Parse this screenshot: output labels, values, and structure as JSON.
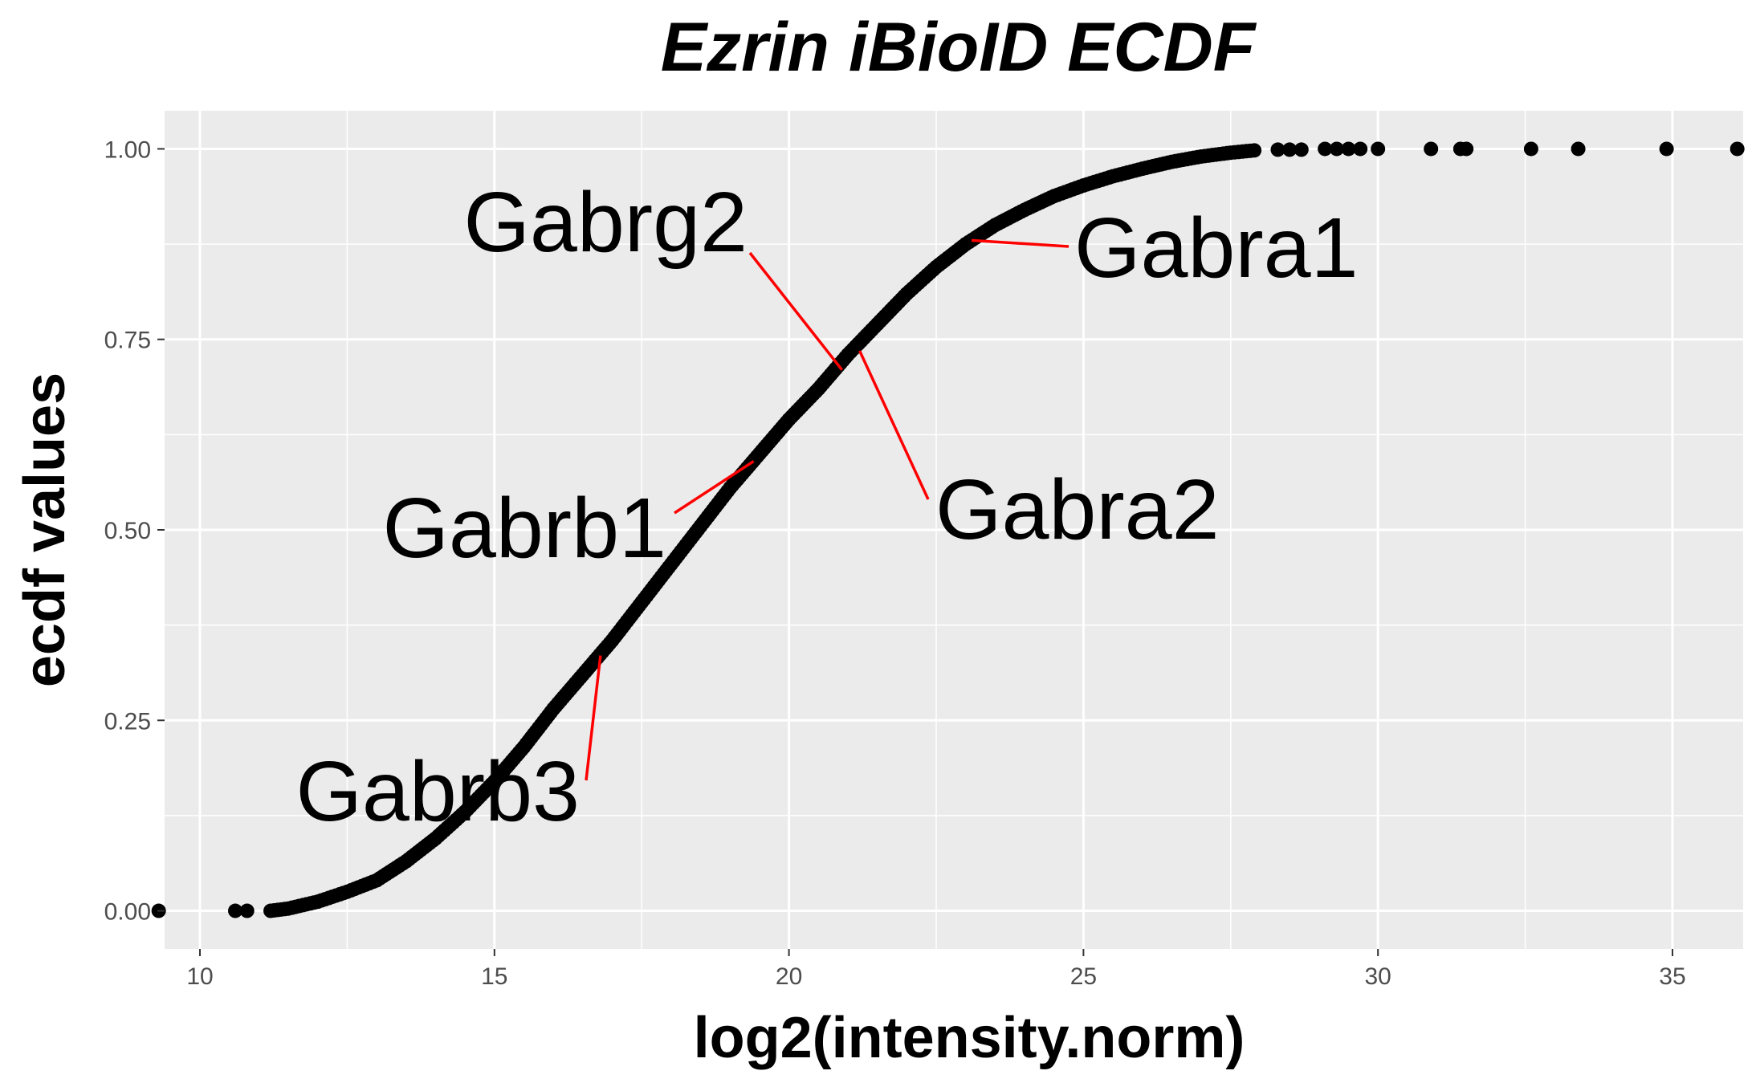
{
  "chart_data": {
    "type": "scatter",
    "title": "Ezrin iBioID ECDF",
    "xlabel": "log2(intensity.norm)",
    "ylabel": "ecdf values",
    "xlim": [
      9.4,
      36.2
    ],
    "ylim": [
      -0.05,
      1.05
    ],
    "x_ticks": [
      10,
      15,
      20,
      25,
      30,
      35
    ],
    "x_tick_labels": [
      "10",
      "15",
      "20",
      "25",
      "30",
      "35"
    ],
    "y_ticks": [
      0.0,
      0.25,
      0.5,
      0.75,
      1.0
    ],
    "y_tick_labels": [
      "0.00",
      "0.25",
      "0.50",
      "0.75",
      "1.00"
    ],
    "grid": true,
    "legend": "none",
    "point_color": "#000000",
    "panel_background": "#ebebeb",
    "label_line_color": "#ff0000",
    "curve_points": [
      [
        11.2,
        0.0
      ],
      [
        11.5,
        0.003
      ],
      [
        12.0,
        0.012
      ],
      [
        12.5,
        0.025
      ],
      [
        13.0,
        0.04
      ],
      [
        13.5,
        0.065
      ],
      [
        14.0,
        0.095
      ],
      [
        14.5,
        0.13
      ],
      [
        15.0,
        0.17
      ],
      [
        15.5,
        0.215
      ],
      [
        16.0,
        0.265
      ],
      [
        16.5,
        0.31
      ],
      [
        17.0,
        0.355
      ],
      [
        17.5,
        0.405
      ],
      [
        18.0,
        0.455
      ],
      [
        18.5,
        0.505
      ],
      [
        19.0,
        0.555
      ],
      [
        19.5,
        0.6
      ],
      [
        20.0,
        0.645
      ],
      [
        20.5,
        0.685
      ],
      [
        21.0,
        0.73
      ],
      [
        21.5,
        0.77
      ],
      [
        22.0,
        0.81
      ],
      [
        22.5,
        0.845
      ],
      [
        23.0,
        0.875
      ],
      [
        23.5,
        0.9
      ],
      [
        24.0,
        0.92
      ],
      [
        24.5,
        0.938
      ],
      [
        25.0,
        0.952
      ],
      [
        25.5,
        0.964
      ],
      [
        26.0,
        0.974
      ],
      [
        26.5,
        0.983
      ],
      [
        27.0,
        0.99
      ],
      [
        27.5,
        0.995
      ],
      [
        27.9,
        0.998
      ]
    ],
    "outlier_points": [
      [
        9.3,
        0.0
      ],
      [
        10.6,
        0.0
      ],
      [
        10.8,
        0.0
      ],
      [
        28.3,
        0.999
      ],
      [
        28.5,
        0.999
      ],
      [
        28.7,
        0.999
      ],
      [
        29.1,
        1.0
      ],
      [
        29.3,
        1.0
      ],
      [
        29.5,
        1.0
      ],
      [
        29.7,
        1.0
      ],
      [
        30.0,
        1.0
      ],
      [
        30.9,
        1.0
      ],
      [
        31.4,
        1.0
      ],
      [
        31.5,
        1.0
      ],
      [
        32.6,
        1.0
      ],
      [
        33.4,
        1.0
      ],
      [
        34.9,
        1.0
      ],
      [
        36.1,
        1.0
      ]
    ],
    "annotations": [
      {
        "text": "Gabrg2",
        "x": 20.9,
        "y": 0.71
      },
      {
        "text": "Gabra1",
        "x": 23.1,
        "y": 0.88
      },
      {
        "text": "Gabrb1",
        "x": 19.4,
        "y": 0.59
      },
      {
        "text": "Gabra2",
        "x": 21.2,
        "y": 0.735
      },
      {
        "text": "Gabrb3",
        "x": 16.8,
        "y": 0.335
      }
    ]
  }
}
